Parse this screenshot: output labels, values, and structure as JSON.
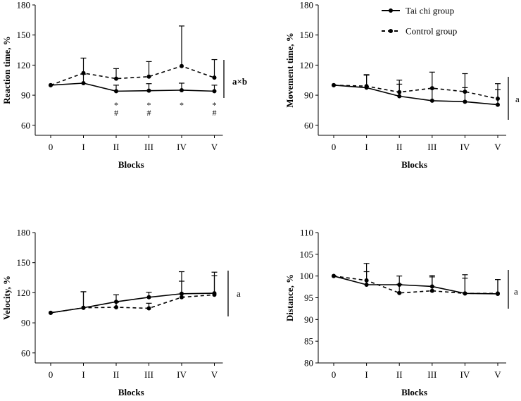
{
  "legend": {
    "tai_chi": "Tai chi group",
    "control": "Control group"
  },
  "chart_data": [
    {
      "type": "line",
      "panel": "top-left",
      "title": "",
      "xlabel": "Blocks",
      "ylabel": "Reaction time, %",
      "categories": [
        "0",
        "I",
        "II",
        "III",
        "IV",
        "V"
      ],
      "ylim": [
        50,
        180
      ],
      "yticks": [
        "60",
        "90",
        "120",
        "150",
        "180"
      ],
      "series": [
        {
          "name": "Tai chi group",
          "style": "solid",
          "values": [
            100,
            102,
            94,
            94.5,
            95,
            94
          ],
          "errors": [
            0,
            9,
            6,
            7,
            7,
            6
          ]
        },
        {
          "name": "Control group",
          "style": "dashed",
          "values": [
            100,
            112,
            106.5,
            108.5,
            119,
            107.5
          ],
          "errors": [
            0,
            15,
            10,
            15,
            40,
            18
          ]
        }
      ],
      "sig_marks": [
        {
          "x": "II",
          "text": [
            "*",
            "#"
          ]
        },
        {
          "x": "III",
          "text": [
            "*",
            "#"
          ]
        },
        {
          "x": "IV",
          "text": [
            "*"
          ]
        },
        {
          "x": "V",
          "text": [
            "*",
            "#"
          ]
        }
      ],
      "annotation": "a×b"
    },
    {
      "type": "line",
      "panel": "top-right",
      "title": "",
      "xlabel": "Blocks",
      "ylabel": "Movement time, %",
      "categories": [
        "0",
        "I",
        "II",
        "III",
        "IV",
        "V"
      ],
      "ylim": [
        50,
        180
      ],
      "yticks": [
        "60",
        "90",
        "120",
        "150",
        "180"
      ],
      "series": [
        {
          "name": "Tai chi group",
          "style": "solid",
          "values": [
            100,
            97.5,
            89,
            84.5,
            83.5,
            80.5
          ],
          "errors": [
            0,
            13,
            12,
            12,
            14,
            15
          ]
        },
        {
          "name": "Control group",
          "style": "dashed",
          "values": [
            100,
            99,
            93,
            97,
            93.5,
            86.5
          ],
          "errors": [
            0,
            11,
            12,
            16,
            18,
            15
          ]
        }
      ],
      "sig_marks": [],
      "annotation": "a"
    },
    {
      "type": "line",
      "panel": "bottom-left",
      "title": "",
      "xlabel": "Blocks",
      "ylabel": "Velocity, %",
      "categories": [
        "0",
        "I",
        "II",
        "III",
        "IV",
        "V"
      ],
      "ylim": [
        50,
        180
      ],
      "yticks": [
        "60",
        "90",
        "120",
        "150",
        "180"
      ],
      "series": [
        {
          "name": "Tai chi group",
          "style": "solid",
          "values": [
            100,
            105,
            111,
            115.5,
            119,
            119.5
          ],
          "errors": [
            0,
            16,
            7,
            5,
            22,
            21
          ]
        },
        {
          "name": "Control group",
          "style": "dashed",
          "values": [
            100,
            105,
            105.5,
            104.5,
            115.5,
            118
          ],
          "errors": [
            0,
            16,
            5,
            5,
            16,
            19
          ]
        }
      ],
      "sig_marks": [],
      "annotation": "a"
    },
    {
      "type": "line",
      "panel": "bottom-right",
      "title": "",
      "xlabel": "Blocks",
      "ylabel": "Distance, %",
      "categories": [
        "0",
        "I",
        "II",
        "III",
        "IV",
        "V"
      ],
      "ylim": [
        80,
        110
      ],
      "yticks": [
        "80",
        "85",
        "90",
        "95",
        "100",
        "105",
        "110"
      ],
      "series": [
        {
          "name": "Tai chi group",
          "style": "solid",
          "values": [
            100,
            98,
            98,
            97.6,
            96,
            95.9
          ],
          "errors": [
            0,
            3,
            2,
            2.2,
            4.3,
            3.3
          ]
        },
        {
          "name": "Control group",
          "style": "dashed",
          "values": [
            100,
            99,
            96.1,
            96.6,
            96,
            96
          ],
          "errors": [
            0,
            3.9,
            2,
            3.5,
            3.5,
            3.2
          ]
        }
      ],
      "sig_marks": [],
      "annotation": "a"
    }
  ]
}
